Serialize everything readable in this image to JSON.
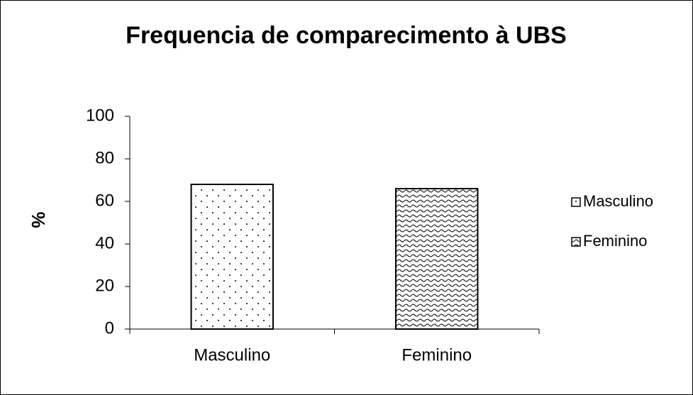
{
  "chart_data": {
    "type": "bar",
    "title": "Frequencia de comparecimento à UBS",
    "y_label": "%",
    "categories": [
      "Masculino",
      "Feminino"
    ],
    "values": [
      68,
      66
    ],
    "patterns": [
      "dots",
      "waves"
    ],
    "ylim": [
      0,
      100
    ],
    "yticks": [
      0,
      20,
      40,
      60,
      80,
      100
    ],
    "grid": false,
    "legend": "right"
  }
}
